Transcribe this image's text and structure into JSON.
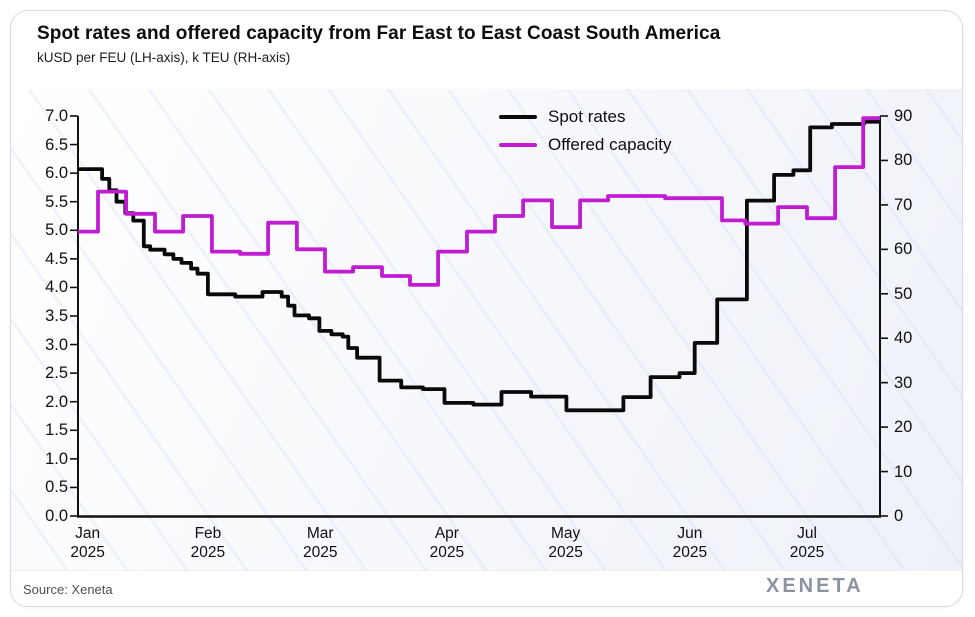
{
  "card": {
    "title": "Spot rates and offered capacity from Far East to East Coast South America",
    "subtitle": "kUSD per FEU (LH-axis), k TEU (RH-axis)",
    "source": "Source: Xeneta",
    "brand": "XENETA"
  },
  "chart_data": {
    "type": "line",
    "title": "Spot rates and offered capacity from Far East to East Coast South America",
    "subtitle": "kUSD per FEU (LH-axis), k TEU (RH-axis)",
    "grid": false,
    "legend_position": "top-center-inside",
    "left_axis": {
      "label": "kUSD per FEU",
      "min": 0,
      "max": 7,
      "ticks": [
        "0.0",
        "0.5",
        "1.0",
        "1.5",
        "2.0",
        "2.5",
        "3.0",
        "3.5",
        "4.0",
        "4.5",
        "5.0",
        "5.5",
        "6.0",
        "6.5",
        "7.0"
      ]
    },
    "right_axis": {
      "label": "k TEU",
      "min": 0,
      "max": 90,
      "ticks": [
        "0",
        "10",
        "20",
        "30",
        "40",
        "50",
        "60",
        "70",
        "80",
        "90"
      ]
    },
    "x_axis": {
      "unit": "month",
      "ticks": [
        {
          "month": "Jan",
          "year": "2025",
          "pct": 1.2
        },
        {
          "month": "Feb",
          "year": "2025",
          "pct": 16.2
        },
        {
          "month": "Mar",
          "year": "2025",
          "pct": 30.2
        },
        {
          "month": "Apr",
          "year": "2025",
          "pct": 46.0
        },
        {
          "month": "May",
          "year": "2025",
          "pct": 60.8
        },
        {
          "month": "Jun",
          "year": "2025",
          "pct": 76.3
        },
        {
          "month": "Jul",
          "year": "2025",
          "pct": 90.9
        }
      ]
    },
    "series": [
      {
        "name": "Spot rates",
        "axis": "left",
        "unit": "kUSD per FEU",
        "color": "#0a0a0a",
        "style": "step",
        "end_pct": 100,
        "points": [
          [
            0,
            6.07
          ],
          [
            3.0,
            5.9
          ],
          [
            3.9,
            5.7
          ],
          [
            4.8,
            5.5
          ],
          [
            5.9,
            5.3
          ],
          [
            6.9,
            5.17
          ],
          [
            8.2,
            4.72
          ],
          [
            9.0,
            4.66
          ],
          [
            10.8,
            4.58
          ],
          [
            11.9,
            4.5
          ],
          [
            12.9,
            4.43
          ],
          [
            14.1,
            4.33
          ],
          [
            14.9,
            4.24
          ],
          [
            16.2,
            3.88
          ],
          [
            19.6,
            3.84
          ],
          [
            23.0,
            3.92
          ],
          [
            25.4,
            3.84
          ],
          [
            26.2,
            3.68
          ],
          [
            27.0,
            3.51
          ],
          [
            28.8,
            3.46
          ],
          [
            30.1,
            3.24
          ],
          [
            31.6,
            3.18
          ],
          [
            33.0,
            3.14
          ],
          [
            33.7,
            2.94
          ],
          [
            34.8,
            2.77
          ],
          [
            37.6,
            2.37
          ],
          [
            40.3,
            2.25
          ],
          [
            43.0,
            2.22
          ],
          [
            45.7,
            1.98
          ],
          [
            49.3,
            1.95
          ],
          [
            52.8,
            2.17
          ],
          [
            56.5,
            2.09
          ],
          [
            60.9,
            1.85
          ],
          [
            68.0,
            2.08
          ],
          [
            71.4,
            2.43
          ],
          [
            75.0,
            2.5
          ],
          [
            76.9,
            3.03
          ],
          [
            79.7,
            3.79
          ],
          [
            83.4,
            5.52
          ],
          [
            86.8,
            5.97
          ],
          [
            89.2,
            6.05
          ],
          [
            91.3,
            6.8
          ],
          [
            94.0,
            6.86
          ],
          [
            98.0,
            6.9
          ]
        ]
      },
      {
        "name": "Offered capacity",
        "axis": "right",
        "unit": "k TEU",
        "color": "#c01dd2",
        "style": "step",
        "end_pct": 100,
        "points": [
          [
            0,
            64
          ],
          [
            2.5,
            73
          ],
          [
            6.0,
            68
          ],
          [
            9.6,
            64
          ],
          [
            13.1,
            67.5
          ],
          [
            16.7,
            59.5
          ],
          [
            20.2,
            59
          ],
          [
            23.7,
            66
          ],
          [
            27.3,
            60
          ],
          [
            30.8,
            55
          ],
          [
            34.3,
            56
          ],
          [
            37.9,
            54
          ],
          [
            41.4,
            52
          ],
          [
            44.9,
            59.5
          ],
          [
            48.5,
            64
          ],
          [
            52.0,
            67.5
          ],
          [
            55.5,
            71
          ],
          [
            59.1,
            65
          ],
          [
            62.6,
            71
          ],
          [
            66.1,
            72
          ],
          [
            73.2,
            71.5
          ],
          [
            80.3,
            66.5
          ],
          [
            83.2,
            65.8
          ],
          [
            87.3,
            69.5
          ],
          [
            90.9,
            67
          ],
          [
            94.4,
            78.5
          ],
          [
            97.9,
            89.5
          ]
        ]
      }
    ]
  }
}
